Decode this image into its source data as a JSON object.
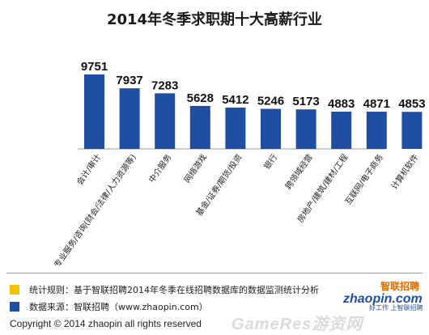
{
  "chart_data": {
    "type": "bar",
    "title": "2014年冬季求职期十大高薪行业",
    "categories": [
      "会计/审计",
      "专业服务/咨询(财会/法律/人力资源等)",
      "中介服务",
      "网络游戏",
      "基金/证券/期货/投资",
      "银行",
      "跨领域经营",
      "房地产/建筑/建材/工程",
      "互联网/电子商务",
      "计算机软件"
    ],
    "values": [
      9751,
      7937,
      7283,
      5628,
      5412,
      5246,
      5173,
      4883,
      4871,
      4853
    ],
    "xlabel": "",
    "ylabel": "",
    "ylim": [
      0,
      10000
    ],
    "grid": false,
    "bar_color": "#1f4fa3"
  },
  "notes": [
    {
      "text": "统计规则：基于智联招聘2014年冬季在线招聘数据库的数据监测统计分析",
      "color": "#f2c200"
    },
    {
      "text": "数据来源：智联招聘（www.zhaopin.com）",
      "color": "#1f4fa3"
    }
  ],
  "copyright": "Copyright  ©  2014 zhaopin all rights reserved",
  "logo": {
    "main": "zhaopin.com",
    "cn": "智联招聘",
    "sub": "好工作  上智联招聘"
  },
  "watermark": "GameRes游资网"
}
